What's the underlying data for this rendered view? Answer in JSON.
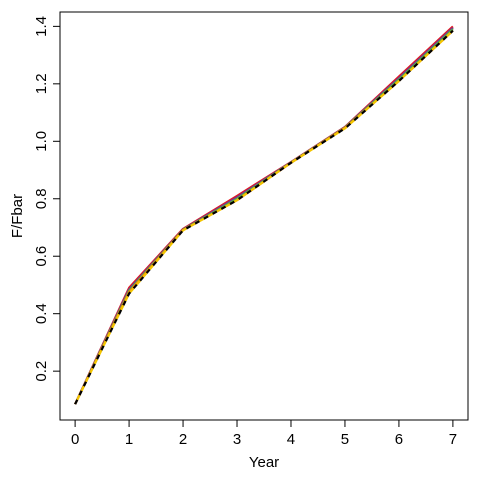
{
  "chart_data": {
    "type": "line",
    "title": "",
    "xlabel": "Year",
    "ylabel": "F/Fbar",
    "xlim": [
      -0.28,
      7.28
    ],
    "ylim": [
      0.03,
      1.45
    ],
    "x_ticks": [
      0,
      1,
      2,
      3,
      4,
      5,
      6,
      7
    ],
    "x_tick_labels": [
      "0",
      "1",
      "2",
      "3",
      "4",
      "5",
      "6",
      "7"
    ],
    "y_ticks": [
      0.2,
      0.4,
      0.6,
      0.8,
      1.0,
      1.2,
      1.4
    ],
    "y_tick_labels": [
      "0.2",
      "0.4",
      "0.6",
      "0.8",
      "1.0",
      "1.2",
      "1.4"
    ],
    "grid": false,
    "legend": "none",
    "series": [
      {
        "color": "#e31a1c",
        "style": "solid",
        "x": [
          0,
          1,
          2,
          3,
          4,
          5,
          6,
          7
        ],
        "values": [
          0.085,
          0.49,
          0.695,
          0.81,
          0.928,
          1.05,
          1.225,
          1.4
        ]
      },
      {
        "color": "#7b3294",
        "style": "solid",
        "x": [
          0,
          1,
          2,
          3,
          4,
          5,
          6,
          7
        ],
        "values": [
          0.085,
          0.485,
          0.693,
          0.805,
          0.927,
          1.049,
          1.22,
          1.395
        ]
      },
      {
        "color": "#4daf4a",
        "style": "solid",
        "x": [
          0,
          1,
          2,
          3,
          4,
          5,
          6,
          7
        ],
        "values": [
          0.085,
          0.48,
          0.692,
          0.8,
          0.926,
          1.048,
          1.215,
          1.39
        ]
      },
      {
        "color": "#ff7f00",
        "style": "solid",
        "x": [
          0,
          1,
          2,
          3,
          4,
          5,
          6,
          7
        ],
        "values": [
          0.085,
          0.475,
          0.691,
          0.795,
          0.925,
          1.047,
          1.21,
          1.385
        ]
      },
      {
        "color": "#000000",
        "style": "dashed",
        "x": [
          0,
          1,
          2,
          3,
          4,
          5,
          6,
          7
        ],
        "values": [
          0.085,
          0.47,
          0.69,
          0.795,
          0.925,
          1.045,
          1.21,
          1.385
        ]
      },
      {
        "color": "#f2c500",
        "style": "dashed-offset",
        "x": [
          0,
          1,
          2,
          3,
          4,
          5,
          6,
          7
        ],
        "values": [
          0.085,
          0.47,
          0.69,
          0.795,
          0.925,
          1.045,
          1.21,
          1.385
        ]
      }
    ]
  }
}
